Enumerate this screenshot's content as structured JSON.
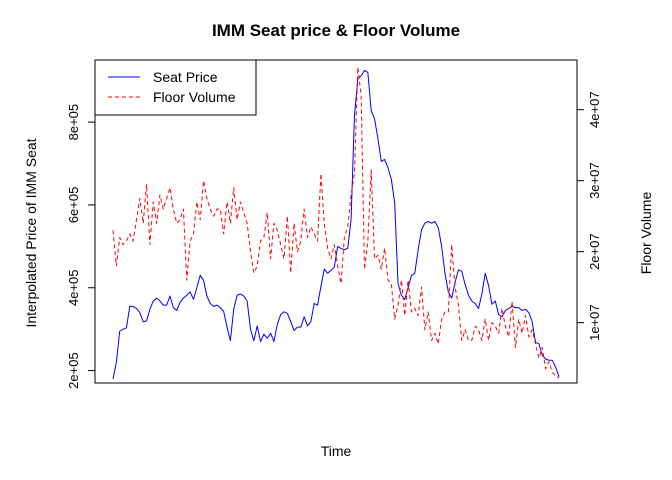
{
  "chart_data": {
    "type": "line",
    "title": "IMM Seat price & Floor Volume",
    "xlabel": "Time",
    "ylabel": "Interpolated Price of IMM Seat",
    "y2label": "Floor Volume",
    "grid": false,
    "legend_position": "top-left",
    "left_axis": {
      "ylim": [
        170000,
        950000
      ],
      "ticks": [
        200000,
        400000,
        600000,
        800000
      ],
      "tick_labels": [
        "2e+05",
        "4e+05",
        "6e+05",
        "8e+05"
      ]
    },
    "right_axis": {
      "ylim": [
        1500000,
        47000000
      ],
      "ticks": [
        10000000,
        20000000,
        30000000,
        40000000
      ],
      "tick_labels": [
        "1e+07",
        "2e+07",
        "3e+07",
        "4e+07"
      ]
    },
    "series": [
      {
        "name": "Seat Price",
        "axis": "left",
        "color": "#0000ff",
        "linestyle": "solid",
        "values": [
          180000,
          220000,
          295000,
          300000,
          303000,
          355000,
          355000,
          350000,
          340000,
          318000,
          320000,
          348000,
          368000,
          375000,
          368000,
          358000,
          358000,
          380000,
          352000,
          345000,
          365000,
          375000,
          382000,
          390000,
          372000,
          400000,
          430000,
          418000,
          380000,
          362000,
          355000,
          358000,
          352000,
          343000,
          305000,
          272000,
          348000,
          382000,
          385000,
          380000,
          368000,
          300000,
          272000,
          308000,
          270000,
          288000,
          278000,
          290000,
          270000,
          312000,
          335000,
          342000,
          338000,
          318000,
          297000,
          305000,
          305000,
          330000,
          308000,
          318000,
          362000,
          358000,
          403000,
          445000,
          435000,
          442000,
          450000,
          500000,
          495000,
          492000,
          495000,
          565000,
          815000,
          905000,
          912000,
          925000,
          920000,
          828000,
          808000,
          760000,
          705000,
          710000,
          690000,
          662000,
          605000,
          410000,
          382000,
          372000,
          400000,
          430000,
          435000,
          492000,
          540000,
          556000,
          560000,
          556000,
          560000,
          545000,
          500000,
          435000,
          390000,
          375000,
          413000,
          443000,
          440000,
          408000,
          382000,
          368000,
          362000,
          350000,
          385000,
          435000,
          405000,
          360000,
          368000,
          335000,
          330000,
          345000,
          350000,
          355000,
          352000,
          352000,
          345000,
          348000,
          340000,
          318000,
          268000,
          265000,
          237000,
          228000,
          225000,
          225000,
          208000,
          185000
        ]
      },
      {
        "name": "Floor Volume",
        "axis": "right",
        "color": "#ff0000",
        "linestyle": "dashed",
        "values": [
          23000000,
          18000000,
          22000000,
          21000000,
          21500000,
          22500000,
          21500000,
          24500000,
          27500000,
          24000000,
          29500000,
          21000000,
          27000000,
          24000000,
          28000000,
          26000000,
          27500000,
          29000000,
          26000000,
          24000000,
          24500000,
          26000000,
          16000000,
          21500000,
          22500000,
          27000000,
          24500000,
          30000000,
          27500000,
          26000000,
          25000000,
          26000000,
          26000000,
          22500000,
          27000000,
          24000000,
          29000000,
          24500000,
          27000000,
          25500000,
          24000000,
          20000000,
          17000000,
          18000000,
          21500000,
          22000000,
          25500000,
          19000000,
          24000000,
          23000000,
          21000000,
          19000000,
          25000000,
          17000000,
          24000000,
          20000000,
          21500000,
          26000000,
          22000000,
          23500000,
          22500000,
          21500000,
          31000000,
          24000000,
          20500000,
          19000000,
          21000000,
          18000000,
          15500000,
          22000000,
          23500000,
          28000000,
          31000000,
          46000000,
          42000000,
          17500000,
          21500000,
          31500000,
          19000000,
          19500000,
          17500000,
          20500000,
          16000000,
          15500000,
          10500000,
          12500000,
          16000000,
          11000000,
          16000000,
          11500000,
          12000000,
          11000000,
          15000000,
          9000000,
          11500000,
          7500000,
          8500000,
          7000000,
          10500000,
          11500000,
          11500000,
          21000000,
          15000000,
          12500000,
          7500000,
          9000000,
          7500000,
          7500000,
          9500000,
          9000000,
          7500000,
          10500000,
          7500000,
          10000000,
          9500000,
          8500000,
          12000000,
          9500000,
          8000000,
          13000000,
          6500000,
          10500000,
          8500000,
          11000000,
          8000000,
          9000000,
          7000000,
          5000000,
          6500000,
          3500000,
          4500000,
          3000000,
          2500000,
          2200000
        ]
      }
    ]
  }
}
